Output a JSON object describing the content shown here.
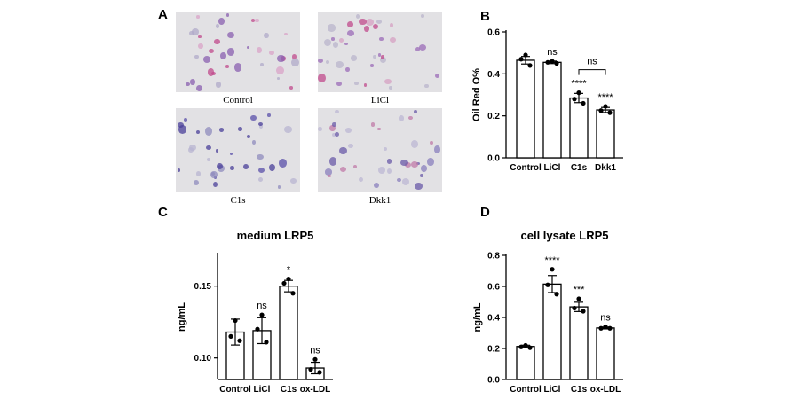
{
  "panels": {
    "a_letter": "A",
    "b_letter": "B",
    "c_letter": "C",
    "d_letter": "D"
  },
  "micrographs": [
    {
      "caption": "Control",
      "stain_dominant": "#c04a8c"
    },
    {
      "caption": "LiCl",
      "stain_dominant": "#c04a8c"
    },
    {
      "caption": "C1s",
      "stain_dominant": "#4a3f9a"
    },
    {
      "caption": "Dkk1",
      "stain_dominant": "#6a5aa8"
    }
  ],
  "chart_data": [
    {
      "id": "B",
      "type": "bar",
      "title": "",
      "ylabel": "Oil Red O%",
      "xlabel": "",
      "categories": [
        "Control",
        "LiCl",
        "C1s",
        "Dkk1"
      ],
      "values": [
        0.465,
        0.455,
        0.285,
        0.228
      ],
      "errors": [
        0.018,
        0.006,
        0.022,
        0.012
      ],
      "points": [
        [
          0.49,
          0.47,
          0.44
        ],
        [
          0.46,
          0.455,
          0.45
        ],
        [
          0.31,
          0.28,
          0.26
        ],
        [
          0.245,
          0.225,
          0.215
        ]
      ],
      "annotations": [
        "",
        "ns",
        "****",
        "****"
      ],
      "bracket": {
        "from": 2,
        "to": 3,
        "label": "ns"
      },
      "ylim": [
        0,
        0.6
      ],
      "yticks": [
        0.0,
        0.2,
        0.4,
        0.6
      ],
      "ytick_labels": [
        "0.0",
        "0.2",
        "0.4",
        "0.6"
      ]
    },
    {
      "id": "C",
      "type": "bar",
      "title": "medium LRP5",
      "ylabel": "ng/mL",
      "xlabel": "",
      "categories": [
        "Control",
        "LiCl",
        "C1s",
        "ox-LDL"
      ],
      "values": [
        0.118,
        0.119,
        0.15,
        0.093
      ],
      "errors": [
        0.009,
        0.009,
        0.004,
        0.004
      ],
      "points": [
        [
          0.126,
          0.115,
          0.112
        ],
        [
          0.13,
          0.12,
          0.111
        ],
        [
          0.155,
          0.152,
          0.145
        ],
        [
          0.099,
          0.092,
          0.09
        ]
      ],
      "annotations": [
        "",
        "ns",
        "*",
        "ns"
      ],
      "ylim": [
        0.085,
        0.172
      ],
      "yticks": [
        0.1,
        0.15
      ],
      "ytick_labels": [
        "0.10",
        "0.15"
      ]
    },
    {
      "id": "D",
      "type": "bar",
      "title": "cell lysate LRP5",
      "ylabel": "ng/mL",
      "xlabel": "",
      "categories": [
        "Control",
        "LiCl",
        "C1s",
        "ox-LDL"
      ],
      "values": [
        0.213,
        0.615,
        0.468,
        0.332
      ],
      "errors": [
        0.008,
        0.055,
        0.03,
        0.006
      ],
      "points": [
        [
          0.22,
          0.21,
          0.205
        ],
        [
          0.71,
          0.61,
          0.55
        ],
        [
          0.52,
          0.46,
          0.44
        ],
        [
          0.34,
          0.33,
          0.33
        ]
      ],
      "annotations": [
        "",
        "****",
        "***",
        "ns"
      ],
      "ylim": [
        0,
        0.8
      ],
      "yticks": [
        0.0,
        0.2,
        0.4,
        0.6,
        0.8
      ],
      "ytick_labels": [
        "0.0",
        "0.2",
        "0.4",
        "0.6",
        "0.8"
      ]
    }
  ]
}
